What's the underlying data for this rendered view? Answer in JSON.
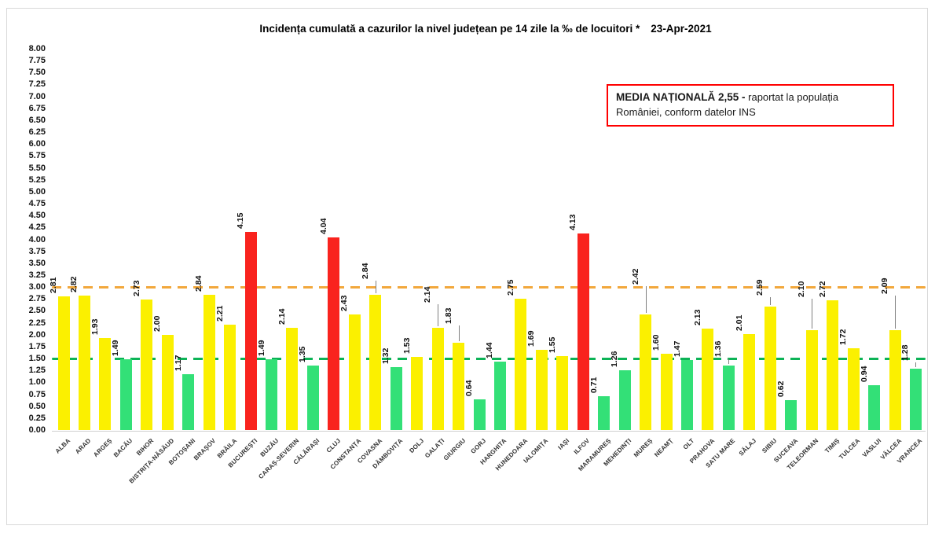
{
  "note_box": {
    "bold_text": "MEDIA NAȚIONALĂ  2,55 -",
    "regular_text": "raportat la populația României, conform datelor INS",
    "border_color": "#FF0000"
  },
  "chart_data": {
    "type": "bar",
    "title": "Incidența cumulată a cazurilor la nivel județean pe 14 zile la ‰ de locuitori *",
    "date_label": "23-Apr-2021",
    "xlabel": "",
    "ylabel": "",
    "ylim": [
      0,
      8
    ],
    "ytick_step": 0.25,
    "grid": false,
    "legend_position": "none",
    "categories": [
      "ALBA",
      "ARAD",
      "ARGEȘ",
      "BACĂU",
      "BIHOR",
      "BISTRIȚA-NĂSĂUD",
      "BOTOȘANI",
      "BRAȘOV",
      "BRĂILA",
      "BUCUREȘTI",
      "BUZĂU",
      "CARAȘ-SEVERIN",
      "CĂLĂRAȘI",
      "CLUJ",
      "CONSTANȚA",
      "COVASNA",
      "DÂMBOVIȚA",
      "DOLJ",
      "GALAȚI",
      "GIURGIU",
      "GORJ",
      "HARGHITA",
      "HUNEDOARA",
      "IALOMIȚA",
      "IAȘI",
      "ILFOV",
      "MARAMUREȘ",
      "MEHEDINȚI",
      "MUREȘ",
      "NEAMȚ",
      "OLT",
      "PRAHOVA",
      "SATU MARE",
      "SĂLAJ",
      "SIBIU",
      "SUCEAVA",
      "TELEORMAN",
      "TIMIȘ",
      "TULCEA",
      "VASLUI",
      "VÂLCEA",
      "VRANCEA"
    ],
    "values": [
      2.81,
      2.82,
      1.93,
      1.49,
      2.73,
      2.0,
      1.17,
      2.84,
      2.21,
      4.15,
      1.49,
      2.14,
      1.35,
      4.04,
      2.43,
      2.84,
      1.32,
      1.53,
      2.14,
      1.83,
      0.64,
      1.44,
      2.75,
      1.69,
      1.55,
      4.13,
      0.71,
      1.26,
      2.42,
      1.6,
      1.47,
      2.13,
      1.36,
      2.01,
      2.59,
      0.62,
      2.1,
      2.72,
      1.72,
      0.94,
      2.09,
      1.28
    ],
    "bar_color_keys": [
      "yellow",
      "yellow",
      "yellow",
      "green",
      "yellow",
      "yellow",
      "green",
      "yellow",
      "yellow",
      "red",
      "green",
      "yellow",
      "green",
      "red",
      "yellow",
      "yellow",
      "green",
      "yellow",
      "yellow",
      "yellow",
      "green",
      "green",
      "yellow",
      "yellow",
      "yellow",
      "red",
      "green",
      "green",
      "yellow",
      "yellow",
      "green",
      "yellow",
      "green",
      "yellow",
      "yellow",
      "green",
      "yellow",
      "yellow",
      "yellow",
      "green",
      "yellow",
      "green"
    ],
    "palette": {
      "yellow": "#FBF000",
      "green": "#33E077",
      "red": "#F9231E"
    },
    "color_rule": "green if value < 1.50, yellow if 1.50-3.00, red if value > 3.00",
    "thresholds": [
      {
        "name": "upper-threshold",
        "value": 3.0,
        "color": "#F2A83C",
        "style": "dashed"
      },
      {
        "name": "lower-threshold",
        "value": 1.5,
        "color": "#0CB356",
        "style": "dashed"
      }
    ],
    "leader_lines": {
      "COVASNA": 16,
      "GALAȚI": 28,
      "GIURGIU": 20,
      "MUREȘ": 34,
      "SIBIU": 10,
      "TELEORMAN": 38,
      "VÂLCEA": 42,
      "SATU MARE": 7,
      "VRANCEA": 6
    }
  }
}
